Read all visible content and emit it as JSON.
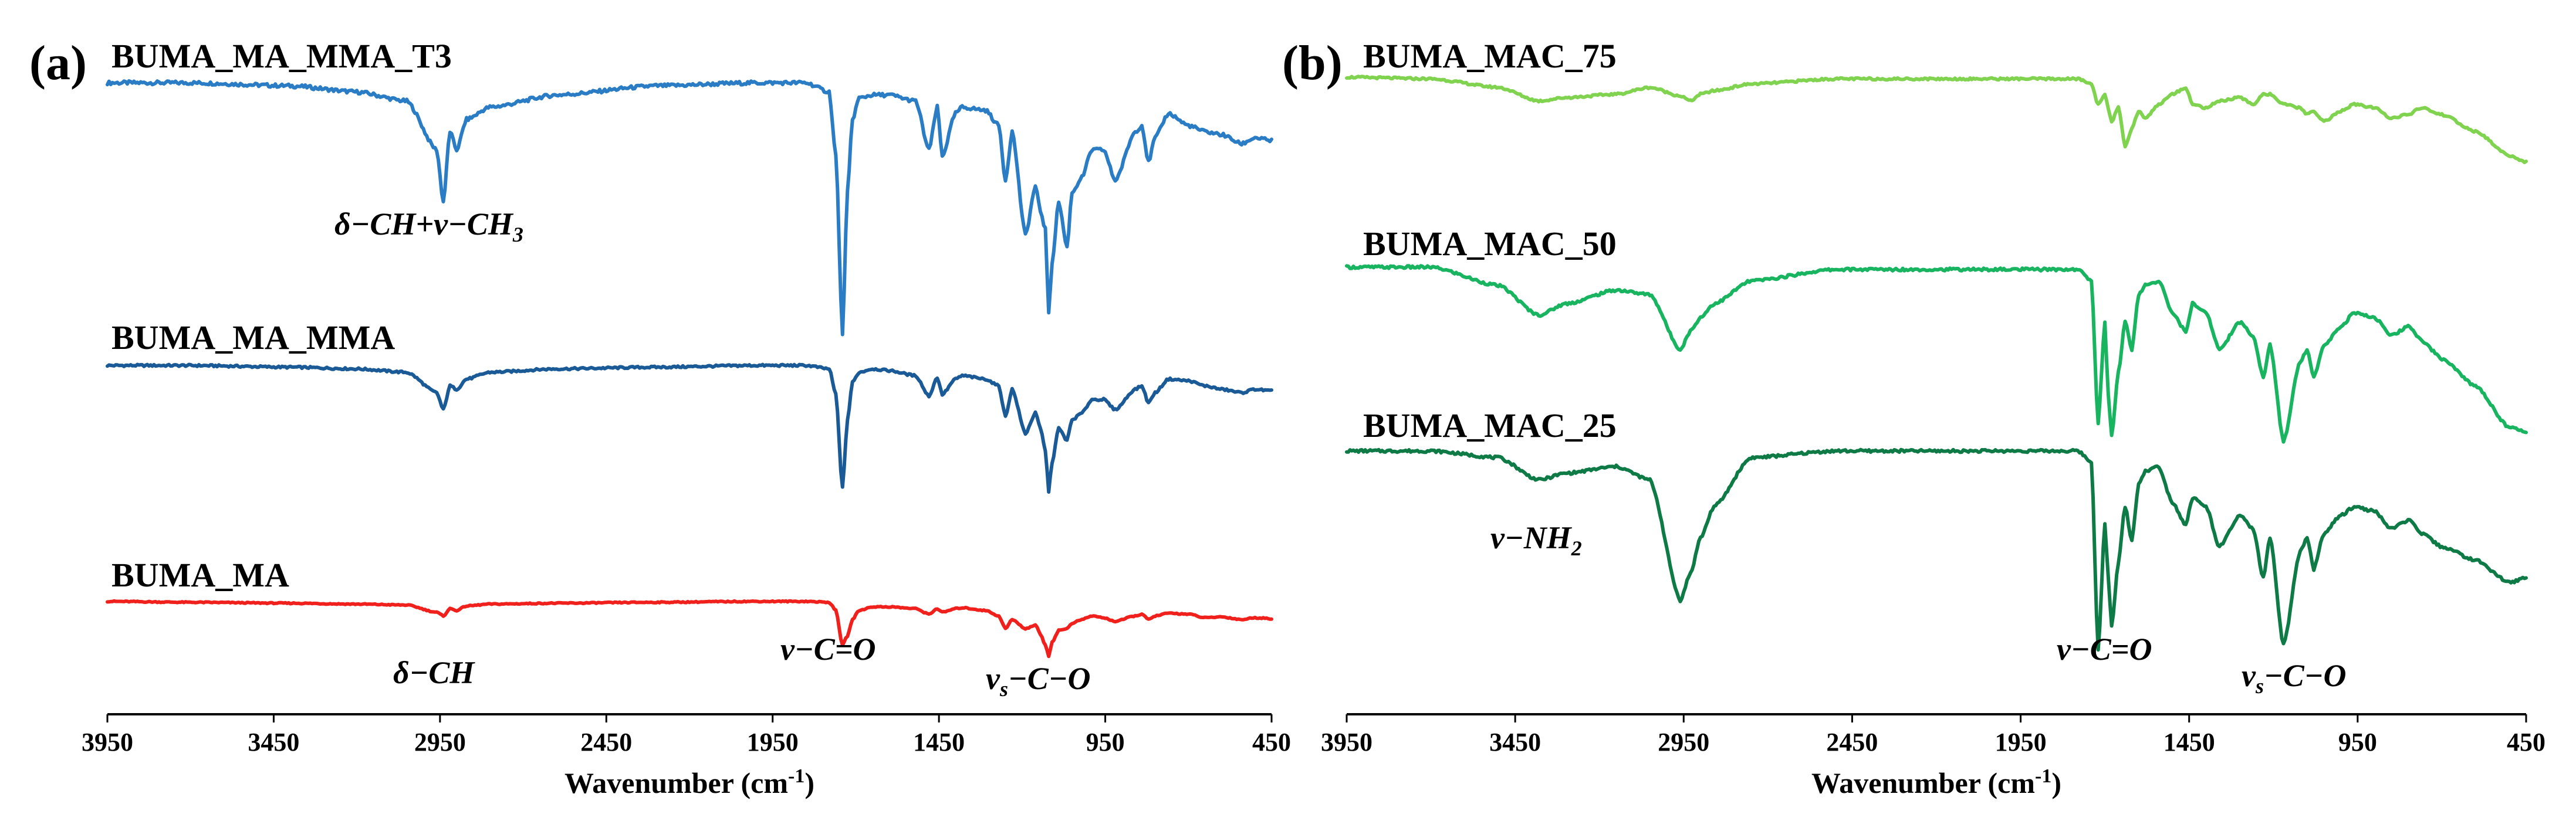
{
  "chart_data": [
    {
      "type": "line",
      "panel_label": "(a)",
      "xlabel": "Wavenumber (cm",
      "xlabel_sup": "-1",
      "xlabel_end": ")",
      "xlim": [
        3950,
        450
      ],
      "x_reversed": true,
      "x_ticks": [
        3950,
        3450,
        2950,
        2450,
        1950,
        1450,
        950,
        450
      ],
      "y_ticks_shown": false,
      "series": [
        {
          "name": "BUMA_MA_MMA_T3",
          "color": "#2a7dc4",
          "baseline_transmittance": 0.94,
          "x": [
            3950,
            3700,
            3400,
            3200,
            3050,
            2960,
            2940,
            2920,
            2900,
            2870,
            2800,
            2600,
            2300,
            2000,
            1850,
            1780,
            1760,
            1740,
            1725,
            1710,
            1690,
            1650,
            1600,
            1520,
            1480,
            1455,
            1440,
            1400,
            1380,
            1310,
            1270,
            1250,
            1230,
            1190,
            1160,
            1145,
            1130,
            1120,
            1110,
            1090,
            1065,
            1050,
            1020,
            990,
            955,
            920,
            860,
            840,
            820,
            800,
            760,
            700,
            650,
            600,
            540,
            500,
            450
          ],
          "y": [
            0.94,
            0.94,
            0.93,
            0.91,
            0.88,
            0.72,
            0.55,
            0.78,
            0.72,
            0.82,
            0.86,
            0.9,
            0.93,
            0.94,
            0.94,
            0.91,
            0.7,
            0.12,
            0.58,
            0.82,
            0.89,
            0.9,
            0.9,
            0.88,
            0.72,
            0.86,
            0.7,
            0.84,
            0.86,
            0.85,
            0.8,
            0.62,
            0.78,
            0.44,
            0.6,
            0.52,
            0.46,
            0.18,
            0.35,
            0.55,
            0.4,
            0.58,
            0.63,
            0.72,
            0.72,
            0.62,
            0.78,
            0.8,
            0.68,
            0.76,
            0.84,
            0.8,
            0.78,
            0.77,
            0.74,
            0.76,
            0.75
          ]
        },
        {
          "name": "BUMA_MA_MMA",
          "color": "#1a5a96",
          "baseline_transmittance": 0.92,
          "x": [
            3950,
            3700,
            3400,
            3200,
            3050,
            2960,
            2940,
            2920,
            2900,
            2870,
            2800,
            2600,
            2300,
            2000,
            1850,
            1780,
            1760,
            1740,
            1725,
            1710,
            1690,
            1650,
            1600,
            1520,
            1480,
            1455,
            1440,
            1400,
            1380,
            1310,
            1270,
            1250,
            1230,
            1190,
            1160,
            1145,
            1130,
            1120,
            1110,
            1090,
            1065,
            1050,
            1020,
            990,
            955,
            920,
            860,
            840,
            820,
            800,
            760,
            700,
            650,
            600,
            540,
            500,
            450
          ],
          "y": [
            0.92,
            0.92,
            0.91,
            0.9,
            0.88,
            0.76,
            0.66,
            0.8,
            0.78,
            0.84,
            0.88,
            0.9,
            0.91,
            0.92,
            0.92,
            0.9,
            0.75,
            0.2,
            0.6,
            0.82,
            0.88,
            0.9,
            0.89,
            0.86,
            0.74,
            0.85,
            0.75,
            0.84,
            0.86,
            0.84,
            0.8,
            0.62,
            0.78,
            0.52,
            0.64,
            0.55,
            0.42,
            0.18,
            0.35,
            0.55,
            0.48,
            0.6,
            0.64,
            0.72,
            0.72,
            0.66,
            0.78,
            0.8,
            0.7,
            0.76,
            0.84,
            0.83,
            0.8,
            0.78,
            0.76,
            0.78,
            0.77
          ]
        },
        {
          "name": "BUMA_MA",
          "color": "#f0211c",
          "baseline_transmittance": 0.9,
          "x": [
            3950,
            3700,
            3400,
            3200,
            3050,
            2960,
            2940,
            2920,
            2900,
            2870,
            2800,
            2600,
            2300,
            2000,
            1850,
            1780,
            1760,
            1740,
            1725,
            1710,
            1690,
            1650,
            1600,
            1520,
            1480,
            1455,
            1440,
            1400,
            1380,
            1310,
            1270,
            1250,
            1230,
            1190,
            1160,
            1145,
            1130,
            1120,
            1110,
            1090,
            1065,
            1050,
            1020,
            990,
            955,
            920,
            860,
            840,
            820,
            800,
            760,
            700,
            650,
            600,
            540,
            500,
            450
          ],
          "y": [
            0.9,
            0.89,
            0.88,
            0.87,
            0.86,
            0.78,
            0.74,
            0.82,
            0.8,
            0.85,
            0.87,
            0.88,
            0.89,
            0.9,
            0.9,
            0.89,
            0.8,
            0.42,
            0.52,
            0.7,
            0.8,
            0.84,
            0.84,
            0.82,
            0.76,
            0.82,
            0.78,
            0.82,
            0.83,
            0.8,
            0.74,
            0.6,
            0.7,
            0.6,
            0.64,
            0.54,
            0.42,
            0.3,
            0.45,
            0.58,
            0.6,
            0.66,
            0.7,
            0.74,
            0.72,
            0.68,
            0.74,
            0.76,
            0.7,
            0.74,
            0.77,
            0.76,
            0.72,
            0.73,
            0.7,
            0.72,
            0.71
          ]
        }
      ],
      "annotations": [
        {
          "html_parts": [
            "δ−CH+ν−CH",
            "3",
            ""
          ],
          "anchor_x": 2950,
          "series_index": 0
        },
        {
          "html_parts": [
            "δ−CH",
            "",
            ""
          ],
          "anchor_x": 2950,
          "series_index": 2
        },
        {
          "html_parts": [
            "ν−C=O",
            "",
            ""
          ],
          "anchor_x": 1730,
          "series_index": 2
        },
        {
          "html_parts": [
            "ν",
            "s",
            "−C−O"
          ],
          "anchor_x": 1150,
          "series_index": 2
        }
      ]
    },
    {
      "type": "line",
      "panel_label": "(b)",
      "xlabel": "Wavenumber (cm",
      "xlabel_sup": "-1",
      "xlabel_end": ")",
      "xlim": [
        3950,
        450
      ],
      "x_reversed": true,
      "x_ticks": [
        3950,
        3450,
        2950,
        2450,
        1950,
        1450,
        950,
        450
      ],
      "y_ticks_shown": false,
      "series": [
        {
          "name": "BUMA_MAC_75",
          "color": "#7fd34e",
          "x": [
            3950,
            3700,
            3500,
            3380,
            3300,
            3150,
            3050,
            2960,
            2930,
            2900,
            2860,
            2750,
            2500,
            2200,
            1900,
            1780,
            1740,
            1720,
            1700,
            1690,
            1680,
            1660,
            1640,
            1620,
            1600,
            1580,
            1540,
            1500,
            1460,
            1440,
            1400,
            1360,
            1300,
            1260,
            1230,
            1210,
            1170,
            1120,
            1100,
            1080,
            1050,
            1000,
            960,
            900,
            850,
            800,
            760,
            700,
            600,
            500,
            450
          ],
          "y": [
            0.96,
            0.95,
            0.9,
            0.82,
            0.84,
            0.86,
            0.9,
            0.85,
            0.82,
            0.86,
            0.88,
            0.92,
            0.95,
            0.95,
            0.95,
            0.95,
            0.92,
            0.8,
            0.86,
            0.78,
            0.7,
            0.78,
            0.55,
            0.66,
            0.76,
            0.72,
            0.8,
            0.86,
            0.9,
            0.8,
            0.78,
            0.82,
            0.84,
            0.8,
            0.86,
            0.86,
            0.8,
            0.78,
            0.74,
            0.76,
            0.7,
            0.76,
            0.8,
            0.78,
            0.72,
            0.74,
            0.78,
            0.74,
            0.64,
            0.5,
            0.46
          ]
        },
        {
          "name": "BUMA_MAC_50",
          "color": "#18b460",
          "x": [
            3950,
            3700,
            3500,
            3380,
            3300,
            3150,
            3050,
            2960,
            2930,
            2900,
            2860,
            2750,
            2500,
            2200,
            1900,
            1780,
            1740,
            1720,
            1700,
            1690,
            1680,
            1660,
            1640,
            1620,
            1600,
            1580,
            1540,
            1500,
            1460,
            1440,
            1400,
            1360,
            1300,
            1260,
            1230,
            1210,
            1170,
            1120,
            1100,
            1080,
            1050,
            1000,
            960,
            900,
            850,
            800,
            760,
            700,
            600,
            500,
            450
          ],
          "y": [
            0.96,
            0.96,
            0.88,
            0.75,
            0.8,
            0.86,
            0.84,
            0.6,
            0.68,
            0.74,
            0.8,
            0.9,
            0.95,
            0.95,
            0.95,
            0.95,
            0.9,
            0.28,
            0.72,
            0.4,
            0.22,
            0.5,
            0.72,
            0.6,
            0.84,
            0.88,
            0.9,
            0.76,
            0.68,
            0.8,
            0.76,
            0.6,
            0.72,
            0.66,
            0.48,
            0.62,
            0.2,
            0.55,
            0.6,
            0.48,
            0.62,
            0.7,
            0.76,
            0.74,
            0.66,
            0.7,
            0.64,
            0.56,
            0.44,
            0.26,
            0.24
          ]
        },
        {
          "name": "BUMA_MAC_25",
          "color": "#0e7a45",
          "x": [
            3950,
            3700,
            3500,
            3380,
            3300,
            3150,
            3050,
            2960,
            2930,
            2900,
            2860,
            2750,
            2500,
            2200,
            1900,
            1780,
            1740,
            1720,
            1700,
            1690,
            1680,
            1660,
            1640,
            1620,
            1600,
            1580,
            1540,
            1500,
            1460,
            1440,
            1400,
            1360,
            1300,
            1260,
            1230,
            1210,
            1170,
            1120,
            1100,
            1080,
            1050,
            1000,
            960,
            900,
            850,
            800,
            760,
            700,
            600,
            500,
            450
          ],
          "y": [
            0.95,
            0.95,
            0.92,
            0.82,
            0.85,
            0.88,
            0.82,
            0.28,
            0.4,
            0.56,
            0.7,
            0.92,
            0.95,
            0.95,
            0.95,
            0.95,
            0.9,
            0.06,
            0.62,
            0.38,
            0.16,
            0.45,
            0.7,
            0.55,
            0.8,
            0.86,
            0.88,
            0.72,
            0.62,
            0.74,
            0.7,
            0.52,
            0.66,
            0.6,
            0.38,
            0.56,
            0.08,
            0.5,
            0.56,
            0.42,
            0.58,
            0.66,
            0.7,
            0.68,
            0.6,
            0.64,
            0.58,
            0.52,
            0.46,
            0.36,
            0.38
          ]
        }
      ],
      "annotations": [
        {
          "html_parts": [
            "ν−NH",
            "2",
            ""
          ],
          "anchor_x": 3300,
          "series_index": 2
        },
        {
          "html_parts": [
            "ν−C=O",
            "",
            ""
          ],
          "anchor_x": 1730,
          "series_index": 2
        },
        {
          "html_parts": [
            "ν",
            "s",
            "−C−O"
          ],
          "anchor_x": 1150,
          "series_index": 2
        }
      ]
    }
  ]
}
